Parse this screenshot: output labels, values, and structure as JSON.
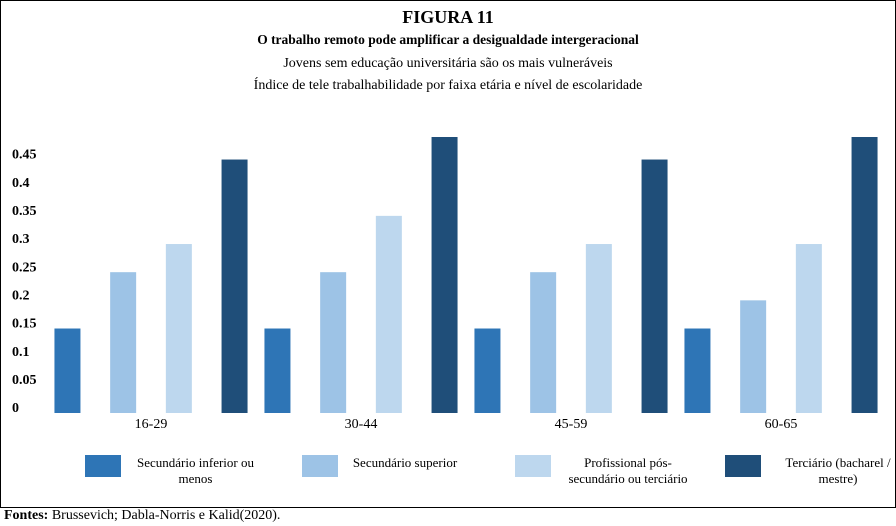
{
  "chart_data": {
    "type": "bar",
    "title": "FIGURA 11",
    "subtitle": "O trabalho remoto pode amplificar a desigualdade intergeracional",
    "description": [
      "Jovens sem educação universitária são os mais vulneráveis",
      "Índice de tele trabalhabilidade por faixa etária e nível de escolaridade"
    ],
    "categories": [
      "16-29",
      "30-44",
      "45-59",
      "60-65"
    ],
    "series": [
      {
        "name": "Secundário inferior ou menos",
        "color": "#2e75b6",
        "values": [
          0.15,
          0.15,
          0.15,
          0.15
        ]
      },
      {
        "name": "Secundário superior",
        "color": "#9dc3e6",
        "values": [
          0.25,
          0.25,
          0.25,
          0.2
        ]
      },
      {
        "name": "Profissional pós-secundário ou terciário",
        "color": "#bdd7ee",
        "values": [
          0.3,
          0.35,
          0.3,
          0.3
        ]
      },
      {
        "name": "Terciário (bacharel / mestre)",
        "color": "#1f4e79",
        "values": [
          0.45,
          0.49,
          0.45,
          0.49
        ]
      }
    ],
    "ylim": [
      0,
      0.49
    ],
    "yticks": [
      0,
      0.05,
      0.1,
      0.15,
      0.2,
      0.25,
      0.3,
      0.35,
      0.4,
      0.45
    ],
    "grid": false,
    "legend": "bottom",
    "source": {
      "label": "Fontes:",
      "text": "Brussevich; Dabla-Norris e Kalid(2020)."
    }
  }
}
